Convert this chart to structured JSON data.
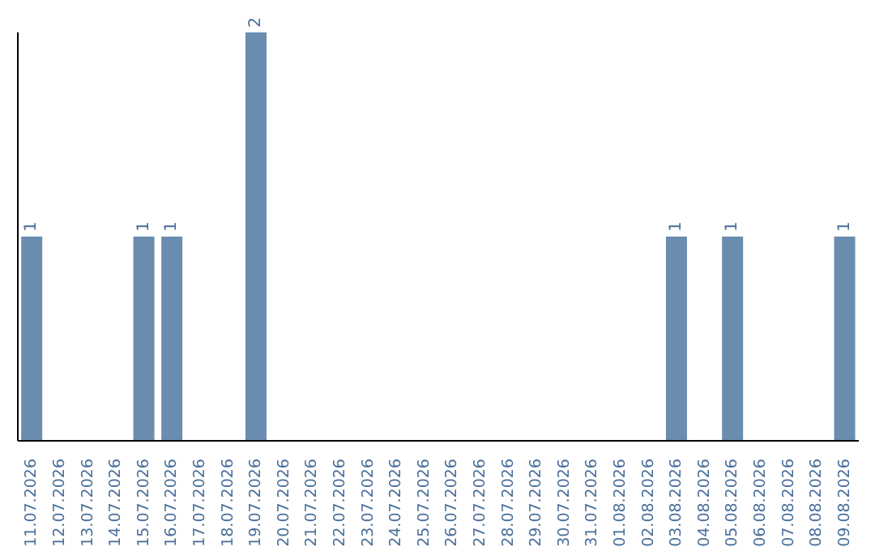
{
  "chart_data": {
    "type": "bar",
    "categories": [
      "11.07.2026",
      "12.07.2026",
      "13.07.2026",
      "14.07.2026",
      "15.07.2026",
      "16.07.2026",
      "17.07.2026",
      "18.07.2026",
      "19.07.2026",
      "20.07.2026",
      "21.07.2026",
      "22.07.2026",
      "23.07.2026",
      "24.07.2026",
      "25.07.2026",
      "26.07.2026",
      "27.07.2026",
      "28.07.2026",
      "29.07.2026",
      "30.07.2026",
      "31.07.2026",
      "01.08.2026",
      "02.08.2026",
      "03.08.2026",
      "04.08.2026",
      "05.08.2026",
      "06.08.2026",
      "07.08.2026",
      "08.08.2026",
      "09.08.2026"
    ],
    "values": [
      1,
      0,
      0,
      0,
      1,
      1,
      0,
      0,
      2,
      0,
      0,
      0,
      0,
      0,
      0,
      0,
      0,
      0,
      0,
      0,
      0,
      0,
      0,
      1,
      0,
      1,
      0,
      0,
      0,
      1
    ],
    "value_labels": [
      "1",
      null,
      null,
      null,
      "1",
      "1",
      null,
      null,
      "2",
      null,
      null,
      null,
      null,
      null,
      null,
      null,
      null,
      null,
      null,
      null,
      null,
      null,
      null,
      "1",
      null,
      "1",
      null,
      null,
      null,
      "1"
    ],
    "color": "#6a8caf",
    "grid": false,
    "legend": false
  }
}
